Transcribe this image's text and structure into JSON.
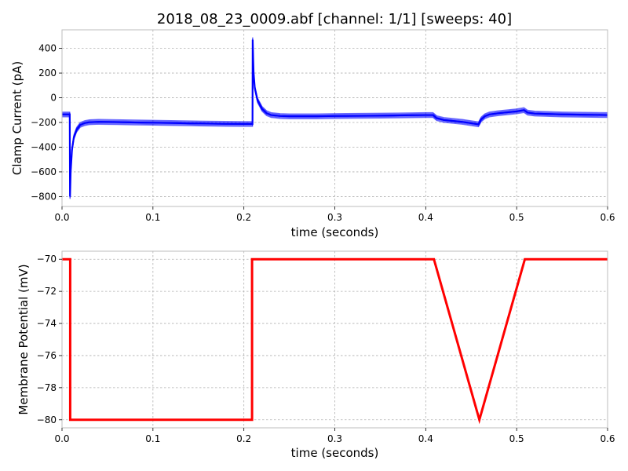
{
  "figure": {
    "title": "2018_08_23_0009.abf [channel: 1/1] [sweeps: 40]"
  },
  "chart_data": [
    {
      "type": "line",
      "xlabel": "time (seconds)",
      "ylabel": "Clamp Current (pA)",
      "xlim": [
        0,
        0.6
      ],
      "ylim": [
        -880,
        550
      ],
      "xticks": [
        0,
        0.1,
        0.2,
        0.3,
        0.4,
        0.5,
        0.6
      ],
      "xtick_labels": [
        "0.0",
        "0.1",
        "0.2",
        "0.3",
        "0.4",
        "0.5",
        "0.6"
      ],
      "yticks": [
        -800,
        -600,
        -400,
        -200,
        0,
        200,
        400
      ],
      "ytick_labels": [
        "−800",
        "−600",
        "−400",
        "−200",
        "0",
        "200",
        "400"
      ],
      "grid": true,
      "series_color": "#0000ff",
      "sweep_count": 40,
      "series": [
        {
          "x": [
            0,
            0.0085,
            0.0088,
            0.0095,
            0.011,
            0.013,
            0.016,
            0.02,
            0.025,
            0.03,
            0.04,
            0.06,
            0.08,
            0.1,
            0.12,
            0.14,
            0.16,
            0.18,
            0.2,
            0.2095,
            0.2097,
            0.2102,
            0.2107,
            0.212,
            0.215,
            0.22,
            0.225,
            0.23,
            0.24,
            0.25,
            0.28,
            0.3,
            0.35,
            0.4,
            0.408,
            0.412,
            0.42,
            0.44,
            0.458,
            0.461,
            0.465,
            0.47,
            0.48,
            0.5,
            0.508,
            0.512,
            0.52,
            0.55,
            0.6
          ],
          "y": [
            -135,
            -135,
            -800,
            -600,
            -420,
            -320,
            -260,
            -220,
            -205,
            -198,
            -195,
            -197,
            -200,
            -202,
            -204,
            -207,
            -209,
            -211,
            -212,
            -212,
            470,
            320,
            200,
            80,
            -20,
            -90,
            -125,
            -140,
            -148,
            -150,
            -150,
            -148,
            -145,
            -140,
            -140,
            -165,
            -180,
            -195,
            -215,
            -175,
            -150,
            -135,
            -125,
            -110,
            -100,
            -120,
            -128,
            -135,
            -140
          ]
        }
      ]
    },
    {
      "type": "line",
      "xlabel": "time (seconds)",
      "ylabel": "Membrane Potential (mV)",
      "xlim": [
        0,
        0.6
      ],
      "ylim": [
        -80.5,
        -69.5
      ],
      "xticks": [
        0,
        0.1,
        0.2,
        0.3,
        0.4,
        0.5,
        0.6
      ],
      "xtick_labels": [
        "0.0",
        "0.1",
        "0.2",
        "0.3",
        "0.4",
        "0.5",
        "0.6"
      ],
      "yticks": [
        -80,
        -78,
        -76,
        -74,
        -72,
        -70
      ],
      "ytick_labels": [
        "−80",
        "−78",
        "−76",
        "−74",
        "−72",
        "−70"
      ],
      "grid": true,
      "series_color": "#ff0000",
      "series": [
        {
          "x": [
            0,
            0.009,
            0.009,
            0.209,
            0.209,
            0.409,
            0.459,
            0.509,
            0.6
          ],
          "y": [
            -70,
            -70,
            -80,
            -80,
            -70,
            -70,
            -80,
            -70,
            -70
          ]
        }
      ]
    }
  ]
}
